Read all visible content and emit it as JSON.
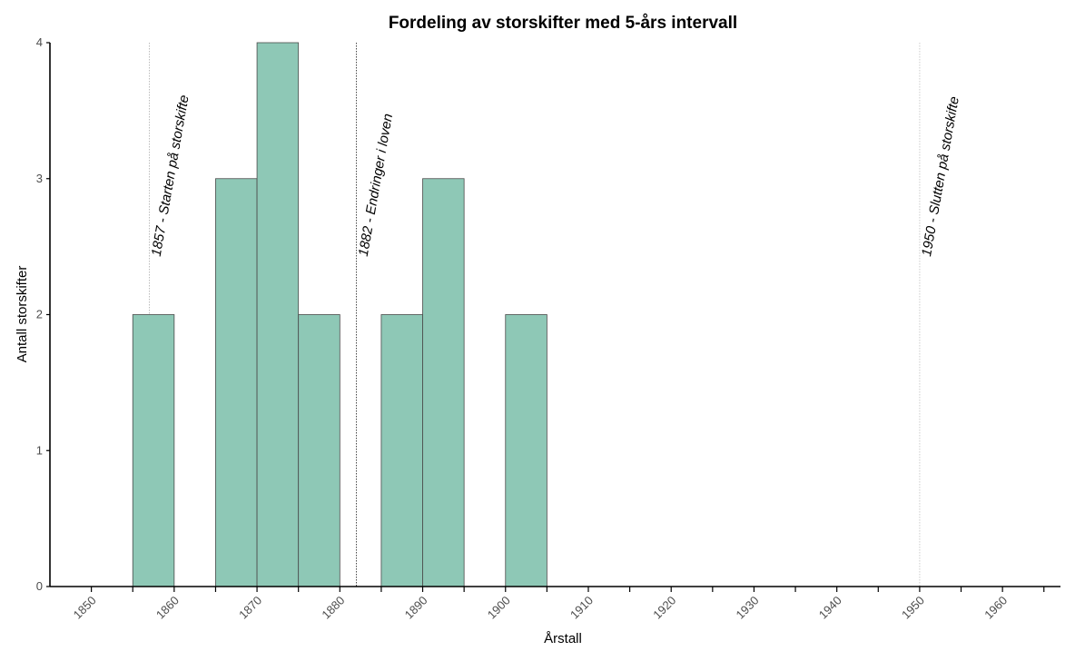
{
  "chart_data": {
    "type": "bar",
    "title": "Fordeling av storskifter med 5-års intervall",
    "xlabel": "Årstall",
    "ylabel": "Antall storskifter",
    "bin_width": 5,
    "bins": [
      {
        "start": 1855,
        "end": 1860,
        "value": 2
      },
      {
        "start": 1865,
        "end": 1870,
        "value": 3
      },
      {
        "start": 1870,
        "end": 1875,
        "value": 4
      },
      {
        "start": 1875,
        "end": 1880,
        "value": 2
      },
      {
        "start": 1885,
        "end": 1890,
        "value": 2
      },
      {
        "start": 1890,
        "end": 1895,
        "value": 3
      },
      {
        "start": 1900,
        "end": 1905,
        "value": 2
      }
    ],
    "xlim": [
      1845,
      1967
    ],
    "ylim": [
      0,
      4
    ],
    "x_ticks": [
      1850,
      1860,
      1870,
      1880,
      1890,
      1900,
      1910,
      1920,
      1930,
      1940,
      1950,
      1960
    ],
    "x_minor_ticks": [
      1855,
      1865,
      1875,
      1885,
      1895,
      1905,
      1915,
      1925,
      1935,
      1945,
      1955,
      1965
    ],
    "y_ticks": [
      0,
      1,
      2,
      3,
      4
    ],
    "grid": false,
    "bar_color": "#8ec8b6",
    "bar_edge_color": "#4a4a4a",
    "annotations": [
      {
        "x": 1857,
        "label": "1857 - Starten på storskifte",
        "line_color": "#bbbbbb"
      },
      {
        "x": 1882,
        "label": "1882 - Endringer i loven",
        "line_color": "#444444"
      },
      {
        "x": 1950,
        "label": "1950 - Slutten på storskifte",
        "line_color": "#cccccc"
      }
    ]
  }
}
